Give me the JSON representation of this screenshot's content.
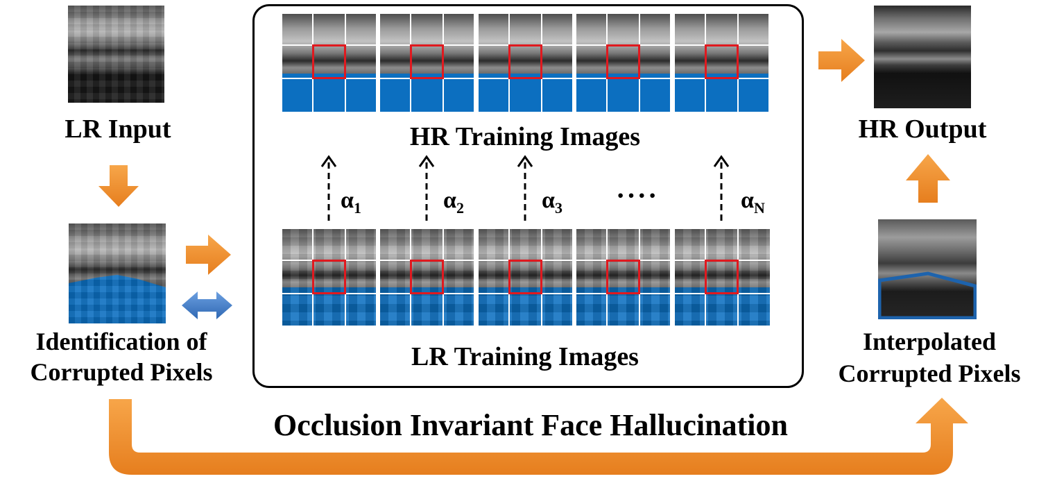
{
  "diagram": {
    "lr_input_label": "LR Input",
    "identification_label_line1": "Identification of",
    "identification_label_line2": "Corrupted Pixels",
    "hr_training_label": "HR Training Images",
    "lr_training_label": "LR Training Images",
    "hr_output_label": "HR Output",
    "interpolated_label_line1": "Interpolated",
    "interpolated_label_line2": "Corrupted Pixels",
    "title": "Occlusion Invariant Face Hallucination",
    "weights": [
      {
        "symbol": "α",
        "subscript": "1"
      },
      {
        "symbol": "α",
        "subscript": "2"
      },
      {
        "symbol": "α",
        "subscript": "3"
      },
      {
        "symbol": "α",
        "subscript": "N"
      }
    ],
    "ellipsis": "····",
    "colors": {
      "orange_arrow": "#f08c2a",
      "blue_arrow": "#3a78c2",
      "occlusion_mask": "#0c6fc0",
      "patch_box": "#e0191f"
    }
  }
}
